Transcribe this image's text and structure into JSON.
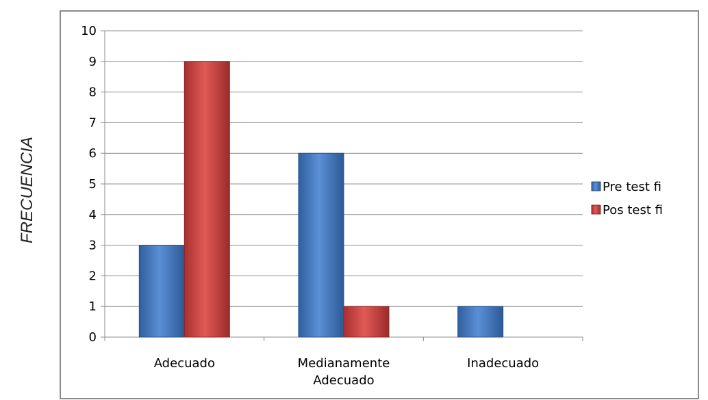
{
  "chart_data": {
    "type": "bar",
    "title": "",
    "xlabel": "",
    "ylabel": "FRECUENCIA",
    "ylim": [
      0,
      10
    ],
    "yticks": [
      0,
      1,
      2,
      3,
      4,
      5,
      6,
      7,
      8,
      9,
      10
    ],
    "grid": true,
    "legend_position": "right",
    "categories": [
      [
        "Adecuado"
      ],
      [
        "Medianamente",
        "Adecuado"
      ],
      [
        "Inadecuado"
      ]
    ],
    "series": [
      {
        "name": "Pre test fi",
        "color": "#3e74bd",
        "values": [
          3,
          6,
          1
        ]
      },
      {
        "name": "Pos test fi",
        "color": "#c8403e",
        "values": [
          9,
          1,
          0
        ]
      }
    ]
  }
}
